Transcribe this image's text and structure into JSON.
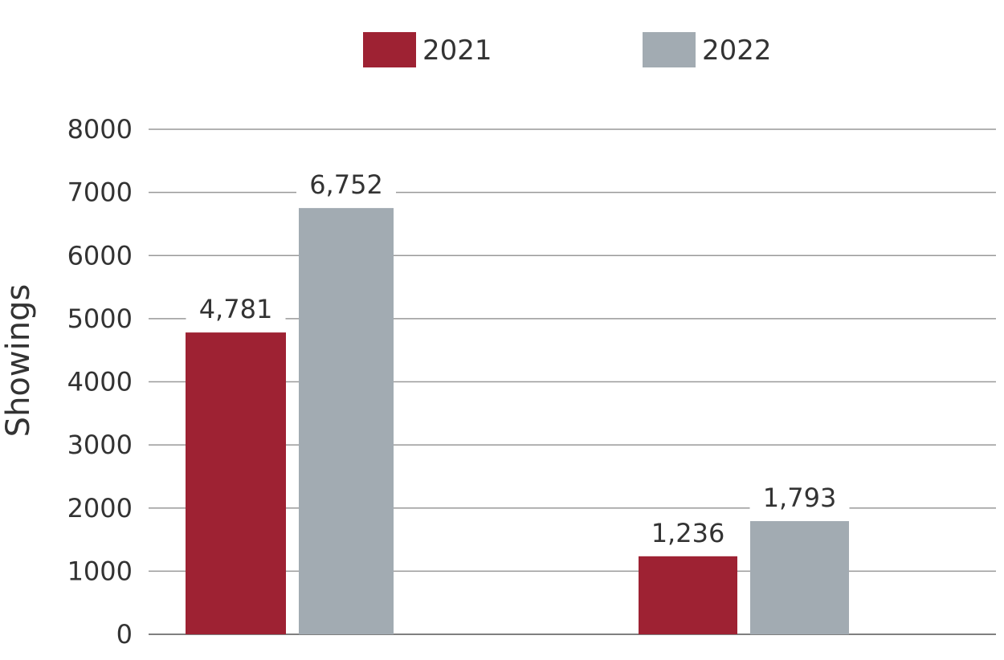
{
  "chart_data": {
    "type": "bar",
    "title": "",
    "xlabel": "",
    "ylabel": "Showings",
    "categories": [
      "",
      ""
    ],
    "series": [
      {
        "name": "2021",
        "color": "#9e2233",
        "values": [
          4781,
          1236
        ],
        "labels": [
          "4,781",
          "1,236"
        ]
      },
      {
        "name": "2022",
        "color": "#a2abb2",
        "values": [
          6752,
          1793
        ],
        "labels": [
          "6,752",
          "1,793"
        ]
      }
    ],
    "ylim": [
      0,
      8000
    ],
    "yticks": [
      0,
      1000,
      2000,
      3000,
      4000,
      5000,
      6000,
      7000,
      8000
    ],
    "grid": true,
    "legend": "top-center"
  }
}
